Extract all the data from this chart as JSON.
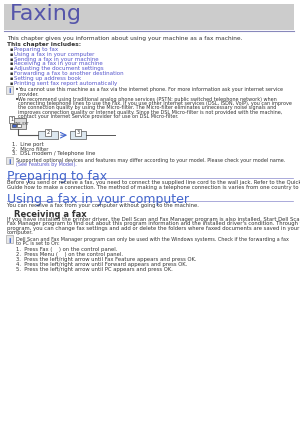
{
  "title": "Faxing",
  "title_color": "#5555aa",
  "title_bg": "#cccccc",
  "header_line_color": "#8888bb",
  "page_bg": "#ffffff",
  "body_text_color": "#333333",
  "link_color": "#5555cc",
  "section_heading_color": "#4466cc",
  "intro_text": "This chapter gives you information about using your machine as a fax machine.",
  "chapter_includes_label": "This chapter includes:",
  "bullet_items": [
    "Preparing to fax",
    "Using a fax in your computer",
    "Sending a fax in your machine",
    "Receiving a fax in your machine",
    "Adjusting the document settings",
    "Forwarding a fax to another destination",
    "Setting up address book",
    "Printing sent fax report automatically"
  ],
  "note_text1": "You cannot use this machine as a fax via the internet phone. For more information ask your internet service",
  "note_text1b": "provider.",
  "note_text2a": "We recommend using traditional analog phone services (PSTN: public switched telephone network) when",
  "note_text2b": "connecting telephone lines to use the Fax. If you use other Internet services (DSL, ISDN, VoIP), you can improve",
  "note_text2c": "the connection quality by using the Micro-filter. The Micro-filter eliminates unnecessary noise signals and",
  "note_text2d": "improves connection quality or Internet quality. Since the DSL Micro-filter is not provided with the machine,",
  "note_text2e": "contact your Internet Service provider for use on DSL Micro-filter.",
  "diagram_labels": [
    "1.  Line port",
    "2.  Micro filter",
    "3.  DSL modem / Telephone line"
  ],
  "supported_note": "Supported optional devices and features may differ according to your model. Please check your model name.",
  "supported_note2": "(See Features by Model).",
  "section1_title": "Preparing to fax",
  "section1_text1": "Before you send or receive a fax, you need to connect the supplied line cord to the wall jack. Refer to the Quick Install",
  "section1_text2": "Guide how to make a connection. The method of making a telephone connection is varies from one country to another.",
  "section2_title": "Using a fax in your computer",
  "section2_line_color": "#8888cc",
  "section2_text": "You can receive a fax from your computer without going to the machine.",
  "subsection1_title": "Receiving a fax",
  "subsection1_text": [
    "If you have installed the printer driver, the Dell Scan and Fax Manager program is also installed. Start Dell Scan and",
    "Fax Manager program to find out about this program information and the installed driver's condition. Through this",
    "program, you can change fax settings and add or delete the folders where faxed documents are saved in your",
    "computer."
  ],
  "note2_text": [
    "Dell Scan and Fax Manager program can only be used with the Windows systems. Check if the forwarding a fax",
    "to PC is set to On:"
  ],
  "steps": [
    "Press Fax (    ) on the control panel.",
    "Press Menu (    ) on the control panel.",
    "Press the left/right arrow until Fax Feature appears and press OK.",
    "Press the left/right arrow until Forward appears and press OK.",
    "Press the left/right arrow until PC appears and press OK."
  ]
}
